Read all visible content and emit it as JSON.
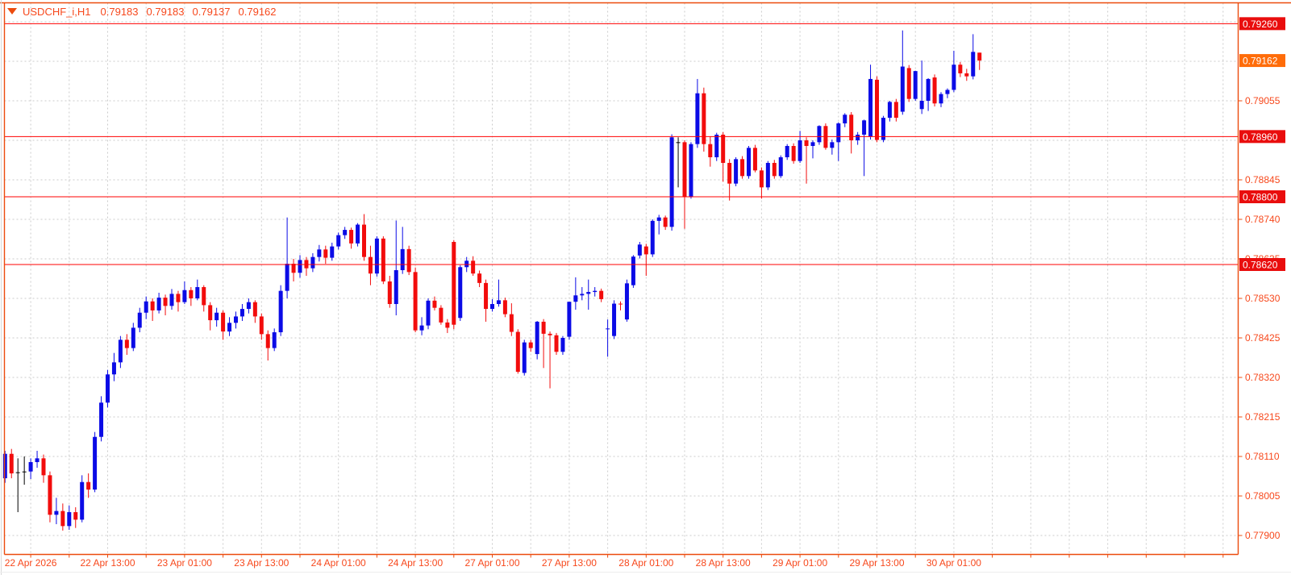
{
  "header": {
    "symbol_period": "USDCHF_i,H1",
    "ohlc": [
      "0.79183",
      "0.79183",
      "0.79137",
      "0.79162"
    ]
  },
  "price_axis": {
    "ticks": [
      "0.77900",
      "0.78005",
      "0.78110",
      "0.78215",
      "0.78320",
      "0.78425",
      "0.78530",
      "0.78635",
      "0.78740",
      "0.78845",
      "0.79055"
    ]
  },
  "levels": [
    {
      "label": "0.79260",
      "value": 0.7926
    },
    {
      "label": "0.78960",
      "value": 0.7896
    },
    {
      "label": "0.78800",
      "value": 0.788
    },
    {
      "label": "0.78620",
      "value": 0.7862
    }
  ],
  "current_price": {
    "label": "0.79162",
    "value": 0.79162
  },
  "time_axis": {
    "labels": [
      "22 Apr 2026",
      "22 Apr 13:00",
      "23 Apr 01:00",
      "23 Apr 13:00",
      "24 Apr 01:00",
      "24 Apr 13:00",
      "27 Apr 01:00",
      "27 Apr 13:00",
      "28 Apr 01:00",
      "28 Apr 13:00",
      "29 Apr 01:00",
      "29 Apr 13:00",
      "30 Apr 01:00"
    ]
  },
  "colors": {
    "up": "#0b0be6",
    "down": "#f20c0c",
    "doji": "#000000",
    "grid": "#cbcbcb",
    "frame": "#ec4b0d",
    "axis_text": "#f7481c",
    "level_line": "#ff0000",
    "level_label_bg": "#e90d0d",
    "current_label_bg": "#ff6c09",
    "label_text": "#ffffff",
    "background": "#ffffff"
  },
  "chart_data": {
    "type": "candlestick",
    "symbol": "USDCHF_i",
    "timeframe": "H1",
    "title": "USDCHF_i,H1",
    "price_scale": 100000,
    "ylim": [
      0.77851,
      0.79316
    ],
    "grid": "dashed",
    "y_tick_step": 0.00105,
    "y_ticks_visible": [
      0.779,
      0.78005,
      0.7811,
      0.78215,
      0.7832,
      0.78425,
      0.7853,
      0.78635,
      0.7874,
      0.78845,
      0.79055
    ],
    "x_labels": [
      "22 Apr 2026",
      "22 Apr 13:00",
      "23 Apr 01:00",
      "23 Apr 13:00",
      "24 Apr 01:00",
      "24 Apr 13:00",
      "27 Apr 01:00",
      "27 Apr 13:00",
      "28 Apr 01:00",
      "28 Apr 13:00",
      "29 Apr 01:00",
      "29 Apr 13:00",
      "30 Apr 01:00"
    ],
    "horizontal_levels": [
      0.7926,
      0.7896,
      0.788,
      0.7862
    ],
    "current_price": 0.79162,
    "last_bar": {
      "open": 0.79183,
      "high": 0.79183,
      "low": 0.79137,
      "close": 0.79162
    },
    "bars": [
      [
        78052,
        78125,
        78040,
        78117
      ],
      [
        78117,
        78130,
        78052,
        78065
      ],
      [
        78068,
        78105,
        77962,
        78068
      ],
      [
        78070,
        78110,
        78035,
        78070
      ],
      [
        78070,
        78105,
        78050,
        78095
      ],
      [
        78095,
        78125,
        78080,
        78105
      ],
      [
        78105,
        78115,
        78040,
        78060
      ],
      [
        78060,
        78070,
        77935,
        77955
      ],
      [
        77955,
        78000,
        77930,
        77965
      ],
      [
        77965,
        77985,
        77913,
        77925
      ],
      [
        77925,
        77980,
        77915,
        77962
      ],
      [
        77962,
        77975,
        77920,
        77942
      ],
      [
        77942,
        78060,
        77935,
        78042
      ],
      [
        78042,
        78065,
        78000,
        78022
      ],
      [
        78022,
        78175,
        78015,
        78162
      ],
      [
        78162,
        78270,
        78150,
        78253
      ],
      [
        78253,
        78340,
        78240,
        78328
      ],
      [
        78328,
        78385,
        78310,
        78360
      ],
      [
        78360,
        78430,
        78345,
        78420
      ],
      [
        78420,
        78435,
        78380,
        78398
      ],
      [
        78398,
        78465,
        78390,
        78452
      ],
      [
        78452,
        78505,
        78440,
        78492
      ],
      [
        78492,
        78535,
        78475,
        78522
      ],
      [
        78522,
        78530,
        78470,
        78498
      ],
      [
        78498,
        78545,
        78490,
        78532
      ],
      [
        78532,
        78540,
        78485,
        78510
      ],
      [
        78510,
        78555,
        78500,
        78542
      ],
      [
        78542,
        78550,
        78495,
        78520
      ],
      [
        78520,
        78575,
        78515,
        78552
      ],
      [
        78552,
        78560,
        78510,
        78530
      ],
      [
        78530,
        78580,
        78525,
        78560
      ],
      [
        78560,
        78565,
        78495,
        78512
      ],
      [
        78512,
        78520,
        78445,
        78472
      ],
      [
        78472,
        78505,
        78455,
        78492
      ],
      [
        78492,
        78498,
        78420,
        78442
      ],
      [
        78442,
        78480,
        78430,
        78465
      ],
      [
        78465,
        78495,
        78450,
        78482
      ],
      [
        78482,
        78515,
        78470,
        78502
      ],
      [
        78502,
        78530,
        78490,
        78520
      ],
      [
        78520,
        78525,
        78465,
        78482
      ],
      [
        78482,
        78490,
        78420,
        78435
      ],
      [
        78435,
        78445,
        78365,
        78398
      ],
      [
        78398,
        78450,
        78390,
        78440
      ],
      [
        78440,
        78565,
        78430,
        78550
      ],
      [
        78550,
        78745,
        78530,
        78622
      ],
      [
        78622,
        78635,
        78575,
        78598
      ],
      [
        78598,
        78645,
        78585,
        78632
      ],
      [
        78632,
        78640,
        78590,
        78610
      ],
      [
        78610,
        78650,
        78600,
        78640
      ],
      [
        78640,
        78672,
        78628,
        78660
      ],
      [
        78660,
        78670,
        78622,
        78638
      ],
      [
        78638,
        78678,
        78630,
        78668
      ],
      [
        78668,
        78705,
        78660,
        78698
      ],
      [
        78698,
        78720,
        78688,
        78712
      ],
      [
        78712,
        78718,
        78662,
        78676
      ],
      [
        78676,
        78730,
        78668,
        78726
      ],
      [
        78726,
        78754,
        78630,
        78640
      ],
      [
        78640,
        78670,
        78565,
        78596
      ],
      [
        78596,
        78695,
        78588,
        78689
      ],
      [
        78689,
        78695,
        78568,
        78575
      ],
      [
        78575,
        78590,
        78505,
        78515
      ],
      [
        78515,
        78737,
        78485,
        78605
      ],
      [
        78605,
        78720,
        78595,
        78661
      ],
      [
        78661,
        78670,
        78592,
        78600
      ],
      [
        78600,
        78612,
        78440,
        78445
      ],
      [
        78445,
        78480,
        78432,
        78458
      ],
      [
        78458,
        78530,
        78448,
        78524
      ],
      [
        78524,
        78535,
        78498,
        78505
      ],
      [
        78505,
        78512,
        78460,
        78466
      ],
      [
        78466,
        78475,
        78438,
        78452
      ],
      [
        78680,
        78685,
        78448,
        78460
      ],
      [
        78478,
        78618,
        78470,
        78613
      ],
      [
        78613,
        78640,
        78600,
        78630
      ],
      [
        78630,
        78642,
        78590,
        78596
      ],
      [
        78596,
        78604,
        78560,
        78571
      ],
      [
        78571,
        78580,
        78468,
        78502
      ],
      [
        78502,
        78528,
        78495,
        78515
      ],
      [
        78515,
        78580,
        78508,
        78525
      ],
      [
        78525,
        78532,
        78480,
        78488
      ],
      [
        78488,
        78517,
        78430,
        78441
      ],
      [
        78441,
        78448,
        78330,
        78335
      ],
      [
        78332,
        78420,
        78325,
        78413
      ],
      [
        78413,
        78420,
        78388,
        78398
      ],
      [
        78382,
        78470,
        78368,
        78468
      ],
      [
        78468,
        78475,
        78345,
        78436
      ],
      [
        78436,
        78442,
        78291,
        78432
      ],
      [
        78432,
        78438,
        78380,
        78388
      ],
      [
        78388,
        78430,
        78380,
        78425
      ],
      [
        78428,
        78521,
        78420,
        78521
      ],
      [
        78521,
        78586,
        78500,
        78538
      ],
      [
        78538,
        78560,
        78525,
        78542
      ],
      [
        78542,
        78580,
        78500,
        78547
      ],
      [
        78547,
        78560,
        78535,
        78550
      ],
      [
        78550,
        78556,
        78520,
        78528
      ],
      [
        78448,
        78474,
        78375,
        78450
      ],
      [
        78430,
        78525,
        78422,
        78516
      ],
      [
        78516,
        78522,
        78498,
        78515
      ],
      [
        78474,
        78580,
        78468,
        78570
      ],
      [
        78565,
        78645,
        78558,
        78641
      ],
      [
        78644,
        78680,
        78636,
        78673
      ],
      [
        78668,
        78675,
        78590,
        78647
      ],
      [
        78647,
        78740,
        78640,
        78736
      ],
      [
        78736,
        78752,
        78700,
        78745
      ],
      [
        78745,
        78750,
        78712,
        78720
      ],
      [
        78720,
        78966,
        78710,
        78958
      ],
      [
        78945,
        78958,
        78825,
        78945
      ],
      [
        78945,
        78950,
        78715,
        78800
      ],
      [
        78800,
        78945,
        78795,
        78940
      ],
      [
        78940,
        79113,
        78930,
        79075
      ],
      [
        79075,
        79090,
        78920,
        78940
      ],
      [
        78940,
        78960,
        78880,
        78905
      ],
      [
        78905,
        78970,
        78895,
        78965
      ],
      [
        78965,
        78972,
        78840,
        78890
      ],
      [
        78890,
        78900,
        78790,
        78835
      ],
      [
        78835,
        78905,
        78828,
        78900
      ],
      [
        78900,
        78908,
        78848,
        78855
      ],
      [
        78855,
        78935,
        78848,
        78930
      ],
      [
        78930,
        78938,
        78865,
        78870
      ],
      [
        78870,
        78878,
        78795,
        78825
      ],
      [
        78825,
        78895,
        78818,
        78890
      ],
      [
        78890,
        78898,
        78848,
        78855
      ],
      [
        78855,
        78910,
        78850,
        78905
      ],
      [
        78905,
        78940,
        78898,
        78935
      ],
      [
        78935,
        78942,
        78888,
        78895
      ],
      [
        78895,
        78975,
        78890,
        78950
      ],
      [
        78950,
        78958,
        78835,
        78935
      ],
      [
        78935,
        78950,
        78902,
        78945
      ],
      [
        78945,
        78990,
        78938,
        78988
      ],
      [
        78988,
        78995,
        78925,
        78930
      ],
      [
        78930,
        78952,
        78912,
        78945
      ],
      [
        78945,
        78998,
        78895,
        78995
      ],
      [
        78995,
        79022,
        78985,
        79018
      ],
      [
        79018,
        79025,
        78915,
        78950
      ],
      [
        78950,
        78972,
        78938,
        78965
      ],
      [
        78965,
        79005,
        78855,
        79003
      ],
      [
        78960,
        79151,
        78952,
        79113
      ],
      [
        79111,
        79120,
        78945,
        78951
      ],
      [
        78951,
        79015,
        78945,
        79010
      ],
      [
        79010,
        79055,
        79000,
        79052
      ],
      [
        79052,
        79060,
        79000,
        79010
      ],
      [
        79026,
        79242,
        79018,
        79146
      ],
      [
        79142,
        79150,
        79052,
        79060
      ],
      [
        79060,
        79135,
        79055,
        79134
      ],
      [
        79033,
        79162,
        79020,
        79055
      ],
      [
        79055,
        79115,
        79028,
        79113
      ],
      [
        79117,
        79125,
        79040,
        79048
      ],
      [
        79048,
        79078,
        79038,
        79073
      ],
      [
        79073,
        79088,
        79062,
        79084
      ],
      [
        79084,
        79188,
        79078,
        79151
      ],
      [
        79151,
        79158,
        79118,
        79128
      ],
      [
        79128,
        79140,
        79108,
        79120
      ],
      [
        79120,
        79232,
        79112,
        79185
      ],
      [
        79183,
        79183,
        79137,
        79162
      ]
    ]
  }
}
